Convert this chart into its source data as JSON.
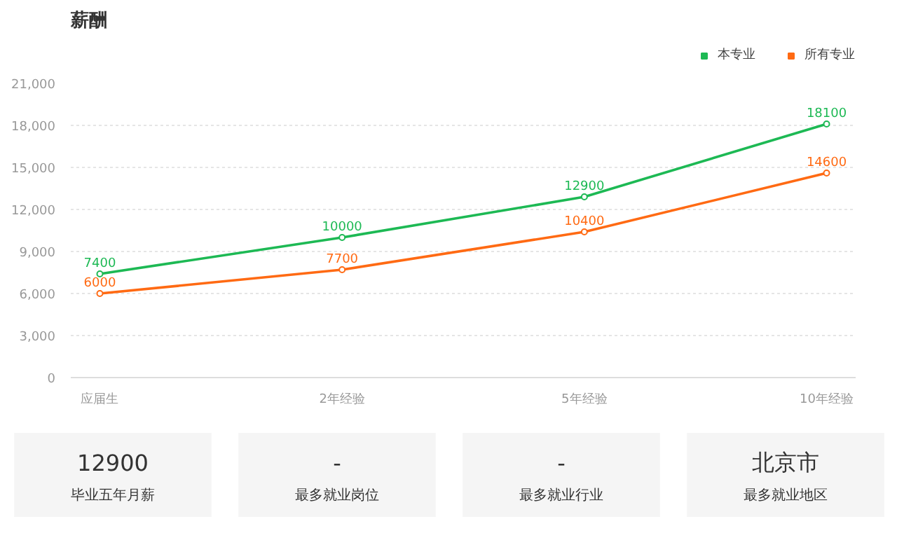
{
  "chart_data": [
    {
      "type": "line",
      "title": "薪酬",
      "categories": [
        "应届生",
        "2年经验",
        "5年经验",
        "10年经验"
      ],
      "series": [
        {
          "name": "本专业",
          "color": "#1db954",
          "values": [
            7400,
            10000,
            12900,
            18100
          ]
        },
        {
          "name": "所有专业",
          "color": "#ff6a13",
          "values": [
            6000,
            7700,
            10400,
            14600
          ]
        }
      ],
      "ylim": [
        0,
        21000
      ],
      "yticks": [
        0,
        {
          "value": 3000,
          "label": "3,000"
        },
        {
          "value": 6000,
          "label": "6,000"
        },
        {
          "value": 9000,
          "label": "9,000"
        },
        {
          "value": 12000,
          "label": "12,000"
        },
        {
          "value": 15000,
          "label": "15,000"
        },
        {
          "value": 18000,
          "label": "18,000"
        },
        {
          "value": 21000,
          "label": "21,000"
        }
      ],
      "grid": "y",
      "legend": "top right",
      "marker": "circle",
      "data_labels": true
    },
    {
      "type": "other",
      "annotations": [
        "12900",
        "毕业五年月薪",
        "-",
        "最多就业岗位",
        "-",
        "最多就业行业",
        "北京市",
        "最多就业地区"
      ]
    }
  ]
}
